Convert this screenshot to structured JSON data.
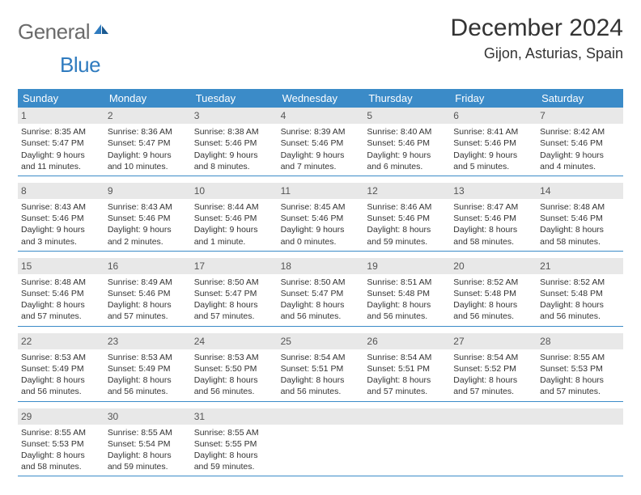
{
  "logo": {
    "part1": "General",
    "part2": "Blue"
  },
  "title": "December 2024",
  "subtitle": "Gijon, Asturias, Spain",
  "colors": {
    "header_bg": "#3b8bc8",
    "header_text": "#ffffff",
    "daynum_bg": "#e8e8e8",
    "daynum_text": "#555555",
    "week_border": "#3b8bc8",
    "logo_gray": "#6b6b6b",
    "logo_blue": "#2f7bbf",
    "body_text": "#333333",
    "page_bg": "#ffffff"
  },
  "typography": {
    "title_fontsize": 30,
    "subtitle_fontsize": 18,
    "weekday_fontsize": 13,
    "daynum_fontsize": 12,
    "body_fontsize": 10.5,
    "logo_fontsize": 26
  },
  "layout": {
    "columns": 7,
    "rows": 5
  },
  "weekdays": [
    "Sunday",
    "Monday",
    "Tuesday",
    "Wednesday",
    "Thursday",
    "Friday",
    "Saturday"
  ],
  "weeks": [
    [
      {
        "day": "1",
        "sunrise": "Sunrise: 8:35 AM",
        "sunset": "Sunset: 5:47 PM",
        "daylight1": "Daylight: 9 hours",
        "daylight2": "and 11 minutes."
      },
      {
        "day": "2",
        "sunrise": "Sunrise: 8:36 AM",
        "sunset": "Sunset: 5:47 PM",
        "daylight1": "Daylight: 9 hours",
        "daylight2": "and 10 minutes."
      },
      {
        "day": "3",
        "sunrise": "Sunrise: 8:38 AM",
        "sunset": "Sunset: 5:46 PM",
        "daylight1": "Daylight: 9 hours",
        "daylight2": "and 8 minutes."
      },
      {
        "day": "4",
        "sunrise": "Sunrise: 8:39 AM",
        "sunset": "Sunset: 5:46 PM",
        "daylight1": "Daylight: 9 hours",
        "daylight2": "and 7 minutes."
      },
      {
        "day": "5",
        "sunrise": "Sunrise: 8:40 AM",
        "sunset": "Sunset: 5:46 PM",
        "daylight1": "Daylight: 9 hours",
        "daylight2": "and 6 minutes."
      },
      {
        "day": "6",
        "sunrise": "Sunrise: 8:41 AM",
        "sunset": "Sunset: 5:46 PM",
        "daylight1": "Daylight: 9 hours",
        "daylight2": "and 5 minutes."
      },
      {
        "day": "7",
        "sunrise": "Sunrise: 8:42 AM",
        "sunset": "Sunset: 5:46 PM",
        "daylight1": "Daylight: 9 hours",
        "daylight2": "and 4 minutes."
      }
    ],
    [
      {
        "day": "8",
        "sunrise": "Sunrise: 8:43 AM",
        "sunset": "Sunset: 5:46 PM",
        "daylight1": "Daylight: 9 hours",
        "daylight2": "and 3 minutes."
      },
      {
        "day": "9",
        "sunrise": "Sunrise: 8:43 AM",
        "sunset": "Sunset: 5:46 PM",
        "daylight1": "Daylight: 9 hours",
        "daylight2": "and 2 minutes."
      },
      {
        "day": "10",
        "sunrise": "Sunrise: 8:44 AM",
        "sunset": "Sunset: 5:46 PM",
        "daylight1": "Daylight: 9 hours",
        "daylight2": "and 1 minute."
      },
      {
        "day": "11",
        "sunrise": "Sunrise: 8:45 AM",
        "sunset": "Sunset: 5:46 PM",
        "daylight1": "Daylight: 9 hours",
        "daylight2": "and 0 minutes."
      },
      {
        "day": "12",
        "sunrise": "Sunrise: 8:46 AM",
        "sunset": "Sunset: 5:46 PM",
        "daylight1": "Daylight: 8 hours",
        "daylight2": "and 59 minutes."
      },
      {
        "day": "13",
        "sunrise": "Sunrise: 8:47 AM",
        "sunset": "Sunset: 5:46 PM",
        "daylight1": "Daylight: 8 hours",
        "daylight2": "and 58 minutes."
      },
      {
        "day": "14",
        "sunrise": "Sunrise: 8:48 AM",
        "sunset": "Sunset: 5:46 PM",
        "daylight1": "Daylight: 8 hours",
        "daylight2": "and 58 minutes."
      }
    ],
    [
      {
        "day": "15",
        "sunrise": "Sunrise: 8:48 AM",
        "sunset": "Sunset: 5:46 PM",
        "daylight1": "Daylight: 8 hours",
        "daylight2": "and 57 minutes."
      },
      {
        "day": "16",
        "sunrise": "Sunrise: 8:49 AM",
        "sunset": "Sunset: 5:46 PM",
        "daylight1": "Daylight: 8 hours",
        "daylight2": "and 57 minutes."
      },
      {
        "day": "17",
        "sunrise": "Sunrise: 8:50 AM",
        "sunset": "Sunset: 5:47 PM",
        "daylight1": "Daylight: 8 hours",
        "daylight2": "and 57 minutes."
      },
      {
        "day": "18",
        "sunrise": "Sunrise: 8:50 AM",
        "sunset": "Sunset: 5:47 PM",
        "daylight1": "Daylight: 8 hours",
        "daylight2": "and 56 minutes."
      },
      {
        "day": "19",
        "sunrise": "Sunrise: 8:51 AM",
        "sunset": "Sunset: 5:48 PM",
        "daylight1": "Daylight: 8 hours",
        "daylight2": "and 56 minutes."
      },
      {
        "day": "20",
        "sunrise": "Sunrise: 8:52 AM",
        "sunset": "Sunset: 5:48 PM",
        "daylight1": "Daylight: 8 hours",
        "daylight2": "and 56 minutes."
      },
      {
        "day": "21",
        "sunrise": "Sunrise: 8:52 AM",
        "sunset": "Sunset: 5:48 PM",
        "daylight1": "Daylight: 8 hours",
        "daylight2": "and 56 minutes."
      }
    ],
    [
      {
        "day": "22",
        "sunrise": "Sunrise: 8:53 AM",
        "sunset": "Sunset: 5:49 PM",
        "daylight1": "Daylight: 8 hours",
        "daylight2": "and 56 minutes."
      },
      {
        "day": "23",
        "sunrise": "Sunrise: 8:53 AM",
        "sunset": "Sunset: 5:49 PM",
        "daylight1": "Daylight: 8 hours",
        "daylight2": "and 56 minutes."
      },
      {
        "day": "24",
        "sunrise": "Sunrise: 8:53 AM",
        "sunset": "Sunset: 5:50 PM",
        "daylight1": "Daylight: 8 hours",
        "daylight2": "and 56 minutes."
      },
      {
        "day": "25",
        "sunrise": "Sunrise: 8:54 AM",
        "sunset": "Sunset: 5:51 PM",
        "daylight1": "Daylight: 8 hours",
        "daylight2": "and 56 minutes."
      },
      {
        "day": "26",
        "sunrise": "Sunrise: 8:54 AM",
        "sunset": "Sunset: 5:51 PM",
        "daylight1": "Daylight: 8 hours",
        "daylight2": "and 57 minutes."
      },
      {
        "day": "27",
        "sunrise": "Sunrise: 8:54 AM",
        "sunset": "Sunset: 5:52 PM",
        "daylight1": "Daylight: 8 hours",
        "daylight2": "and 57 minutes."
      },
      {
        "day": "28",
        "sunrise": "Sunrise: 8:55 AM",
        "sunset": "Sunset: 5:53 PM",
        "daylight1": "Daylight: 8 hours",
        "daylight2": "and 57 minutes."
      }
    ],
    [
      {
        "day": "29",
        "sunrise": "Sunrise: 8:55 AM",
        "sunset": "Sunset: 5:53 PM",
        "daylight1": "Daylight: 8 hours",
        "daylight2": "and 58 minutes."
      },
      {
        "day": "30",
        "sunrise": "Sunrise: 8:55 AM",
        "sunset": "Sunset: 5:54 PM",
        "daylight1": "Daylight: 8 hours",
        "daylight2": "and 59 minutes."
      },
      {
        "day": "31",
        "sunrise": "Sunrise: 8:55 AM",
        "sunset": "Sunset: 5:55 PM",
        "daylight1": "Daylight: 8 hours",
        "daylight2": "and 59 minutes."
      },
      {
        "empty": true
      },
      {
        "empty": true
      },
      {
        "empty": true
      },
      {
        "empty": true
      }
    ]
  ]
}
